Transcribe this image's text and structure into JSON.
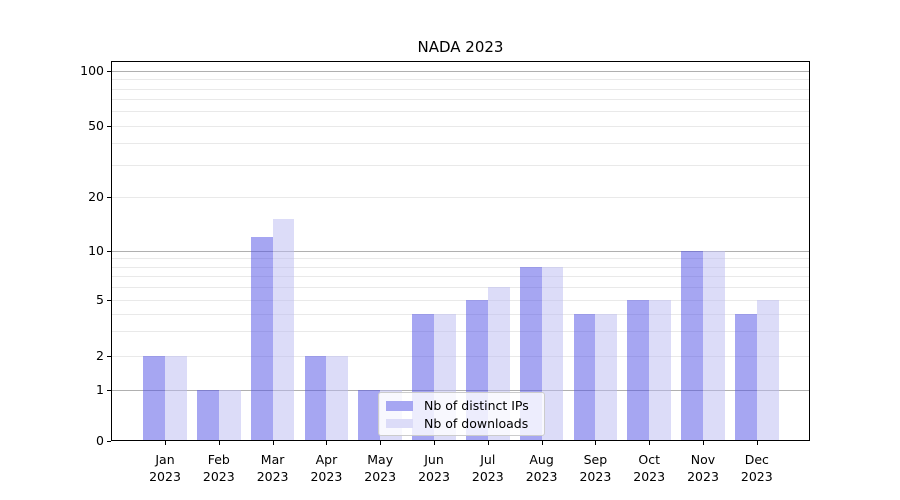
{
  "chart_data": {
    "type": "bar",
    "title": "NADA 2023",
    "months": [
      "Jan",
      "Feb",
      "Mar",
      "Apr",
      "May",
      "Jun",
      "Jul",
      "Aug",
      "Sep",
      "Oct",
      "Nov",
      "Dec"
    ],
    "year": "2023",
    "series": [
      {
        "name": "Nb of distinct IPs",
        "fill": "rgba(77,77,229,0.5)",
        "swatch_color": "#a6a6f2",
        "values": [
          2,
          1,
          12,
          2,
          1,
          4,
          5,
          8,
          4,
          5,
          10,
          4
        ]
      },
      {
        "name": "Nb of downloads",
        "fill": "rgba(185,185,241,0.5)",
        "swatch_color": "#dcdcf8",
        "values": [
          2,
          1,
          15,
          2,
          1,
          4,
          6,
          8,
          4,
          5,
          10,
          5
        ]
      }
    ],
    "yticks": [
      0,
      1,
      2,
      5,
      10,
      20,
      50,
      100
    ],
    "ytick_labels": [
      "0",
      "1",
      "2",
      "5",
      "10",
      "20",
      "50",
      "100"
    ],
    "yscale": "log above 1, linear 0-1",
    "ylim": [
      0,
      103
    ],
    "grid": true,
    "legend_position": "lower center"
  },
  "colors": {
    "background": "#ffffff",
    "major_grid": "#b0b0b0",
    "minor_grid": "#e9e9e9",
    "spine": "#000000",
    "text": "#000000",
    "legend_border": "#cccccc",
    "legend_bg": "rgba(255,255,255,0.8)"
  }
}
